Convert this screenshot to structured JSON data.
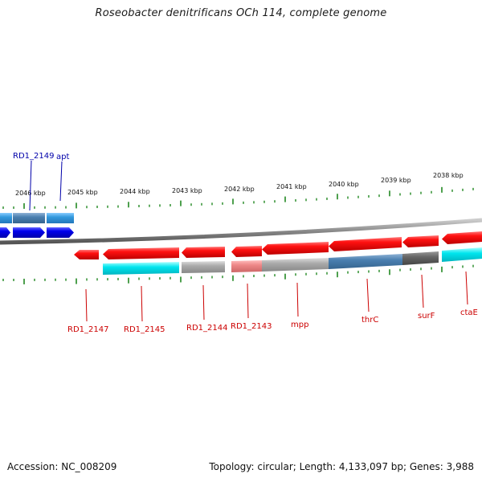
{
  "header": {
    "title": "Roseobacter denitrificans OCh 114, complete genome"
  },
  "footer": {
    "accession": "Accession: NC_008209",
    "summary": "Topology: circular; Length: 4,133,097 bp; Genes: 3,988"
  },
  "scale_labels": [
    "2046 kbp",
    "2045 kbp",
    "2044 kbp",
    "2043 kbp",
    "2042 kbp",
    "2041 kbp",
    "2040 kbp",
    "2039 kbp",
    "2038 kbp"
  ],
  "top_genes": [
    {
      "name": "RD1_2149",
      "color": "#0000aa"
    },
    {
      "name": "apt",
      "color": "#0000aa"
    }
  ],
  "bottom_genes": [
    {
      "name": "RD1_2147",
      "color": "#cc0000"
    },
    {
      "name": "RD1_2145",
      "color": "#cc0000"
    },
    {
      "name": "RD1_2144",
      "color": "#cc0000"
    },
    {
      "name": "RD1_2143",
      "color": "#cc0000"
    },
    {
      "name": "mpp",
      "color": "#cc0000"
    },
    {
      "name": "thrC",
      "color": "#cc0000"
    },
    {
      "name": "surF",
      "color": "#cc0000"
    },
    {
      "name": "ctaE",
      "color": "#cc0000"
    }
  ],
  "colors": {
    "forward_strand": "#0000ee",
    "reverse_strand": "#ee0000",
    "backbone": "#888888",
    "tick": "#228822",
    "cog_cyan": "#00e5ee",
    "cog_lightblue": "#3399dd",
    "cog_steelblue": "#4a7fb0",
    "cog_gray": "#aaaaaa",
    "cog_darkgray": "#666666",
    "cog_pink": "#ee8888"
  }
}
